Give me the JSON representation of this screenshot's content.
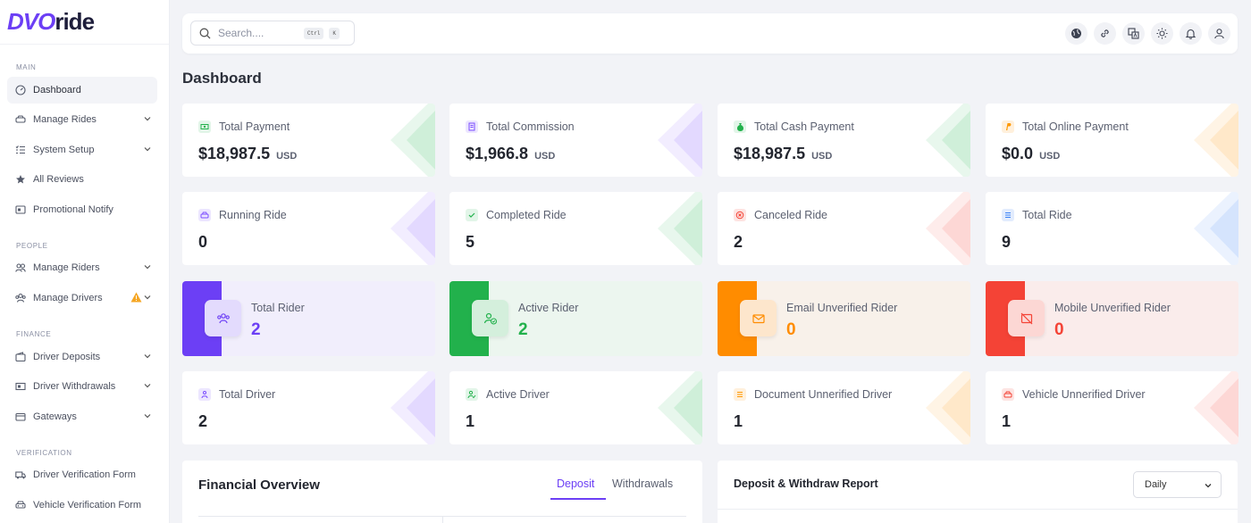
{
  "brand": {
    "logo_prefix": "DVO",
    "logo_suffix": "ride"
  },
  "sidebar": {
    "sections": {
      "main": "MAIN",
      "people": "PEOPLE",
      "finance": "FINANCE",
      "verification": "VERIFICATION"
    },
    "items": [
      {
        "label": "Dashboard",
        "icon": "gauge-icon"
      },
      {
        "label": "Manage Rides",
        "icon": "car-icon"
      },
      {
        "label": "System Setup",
        "icon": "list-check-icon"
      },
      {
        "label": "All Reviews",
        "icon": "star-icon"
      },
      {
        "label": "Promotional Notify",
        "icon": "megaphone-icon"
      },
      {
        "label": "Manage Riders",
        "icon": "users-icon"
      },
      {
        "label": "Manage Drivers",
        "icon": "driver-group-icon"
      },
      {
        "label": "Driver Deposits",
        "icon": "wallet-icon"
      },
      {
        "label": "Driver Withdrawals",
        "icon": "cash-icon"
      },
      {
        "label": "Gateways",
        "icon": "credit-card-icon"
      },
      {
        "label": "Driver Verification Form",
        "icon": "truck-icon"
      },
      {
        "label": "Vehicle Verification Form",
        "icon": "car-front-icon"
      }
    ]
  },
  "topbar": {
    "search_placeholder": "Search....",
    "shortcut": [
      "Ctrl",
      "K"
    ],
    "icons": [
      "globe-icon",
      "link-icon",
      "translate-icon",
      "sun-icon",
      "bell-icon",
      "user-icon"
    ]
  },
  "page": {
    "title": "Dashboard"
  },
  "payment_cards": [
    {
      "label": "Total Payment",
      "value": "$18,987.5",
      "unit": "USD",
      "color": "#22b14c"
    },
    {
      "label": "Total Commission",
      "value": "$1,966.8",
      "unit": "USD",
      "color": "#7c4dff"
    },
    {
      "label": "Total Cash Payment",
      "value": "$18,987.5",
      "unit": "USD",
      "color": "#22b14c"
    },
    {
      "label": "Total Online Payment",
      "value": "$0.0",
      "unit": "USD",
      "color": "#ff9800"
    }
  ],
  "ride_cards": [
    {
      "label": "Running Ride",
      "value": "0",
      "color": "#7c4dff"
    },
    {
      "label": "Completed Ride",
      "value": "5",
      "color": "#22b14c"
    },
    {
      "label": "Canceled Ride",
      "value": "2",
      "color": "#f44336"
    },
    {
      "label": "Total Ride",
      "value": "9",
      "color": "#3b82f6"
    }
  ],
  "rider_cards": [
    {
      "label": "Total Rider",
      "value": "2",
      "color": "#6c3ff5",
      "bg": "#f1eefc",
      "icon": "users-group-icon"
    },
    {
      "label": "Active Rider",
      "value": "2",
      "color": "#22b14c",
      "bg": "#ecf6ef",
      "icon": "user-check-icon"
    },
    {
      "label": "Email Unverified Rider",
      "value": "0",
      "color": "#ff8c00",
      "bg": "#f8f1ea",
      "icon": "mail-icon"
    },
    {
      "label": "Mobile Unverified Rider",
      "value": "0",
      "color": "#f44336",
      "bg": "#faeceb",
      "icon": "mobile-off-icon"
    }
  ],
  "driver_cards": [
    {
      "label": "Total Driver",
      "value": "2",
      "color": "#7c4dff"
    },
    {
      "label": "Active Driver",
      "value": "1",
      "color": "#22b14c"
    },
    {
      "label": "Document Unnerified Driver",
      "value": "1",
      "color": "#ff9800"
    },
    {
      "label": "Vehicle Unnerified Driver",
      "value": "1",
      "color": "#f44336"
    }
  ],
  "financial_overview": {
    "title": "Financial Overview",
    "tabs": [
      "Deposit",
      "Withdrawals"
    ]
  },
  "report": {
    "title": "Deposit & Withdraw Report",
    "period": "Daily"
  }
}
